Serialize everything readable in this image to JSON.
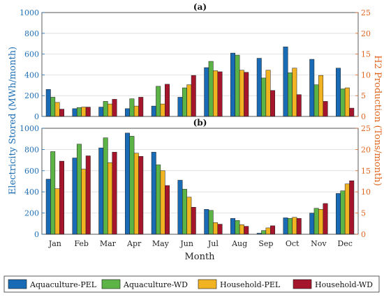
{
  "chart_data": {
    "type": "bar",
    "categories": [
      "Jan",
      "Feb",
      "Mar",
      "Apr",
      "May",
      "Jun",
      "Jul",
      "Aug",
      "Sep",
      "Oct",
      "Nov",
      "Dec"
    ],
    "xlabel": "Month",
    "ylabel_left": "Electricity Stored (MWh/month)",
    "ylabel_right": "H2 Production (Tons/month)",
    "ylim_left": [
      0,
      1000
    ],
    "ylim_right": [
      0,
      25
    ],
    "yticks_left": [
      "0",
      "200",
      "400",
      "600",
      "800",
      "1000"
    ],
    "yticks_right": [
      "0",
      "5",
      "10",
      "15",
      "20",
      "25"
    ],
    "grid": true,
    "legend_position": "bottom",
    "series": [
      {
        "name": "Aquaculture-PEL",
        "color": "#1a6bb5"
      },
      {
        "name": "Aquaculture-WD",
        "color": "#5cb346"
      },
      {
        "name": "Household-PEL",
        "color": "#f2b322"
      },
      {
        "name": "Household-WD",
        "color": "#a5152c"
      }
    ],
    "panels": [
      {
        "label": "(a)",
        "values": [
          [
            260,
            75,
            90,
            75,
            100,
            185,
            470,
            610,
            560,
            670,
            550,
            465
          ],
          [
            185,
            85,
            145,
            170,
            290,
            275,
            530,
            590,
            370,
            420,
            305,
            265
          ],
          [
            135,
            90,
            120,
            100,
            120,
            305,
            440,
            445,
            445,
            465,
            395,
            275
          ],
          [
            70,
            90,
            165,
            185,
            310,
            395,
            430,
            425,
            250,
            210,
            145,
            80
          ]
        ]
      },
      {
        "label": "(b)",
        "values": [
          [
            520,
            720,
            815,
            955,
            775,
            510,
            235,
            150,
            10,
            155,
            200,
            385
          ],
          [
            780,
            850,
            910,
            925,
            655,
            425,
            225,
            130,
            35,
            150,
            245,
            410
          ],
          [
            430,
            615,
            675,
            765,
            600,
            350,
            110,
            90,
            60,
            160,
            235,
            475
          ],
          [
            690,
            740,
            775,
            735,
            460,
            255,
            95,
            75,
            80,
            150,
            290,
            505
          ]
        ]
      }
    ]
  }
}
